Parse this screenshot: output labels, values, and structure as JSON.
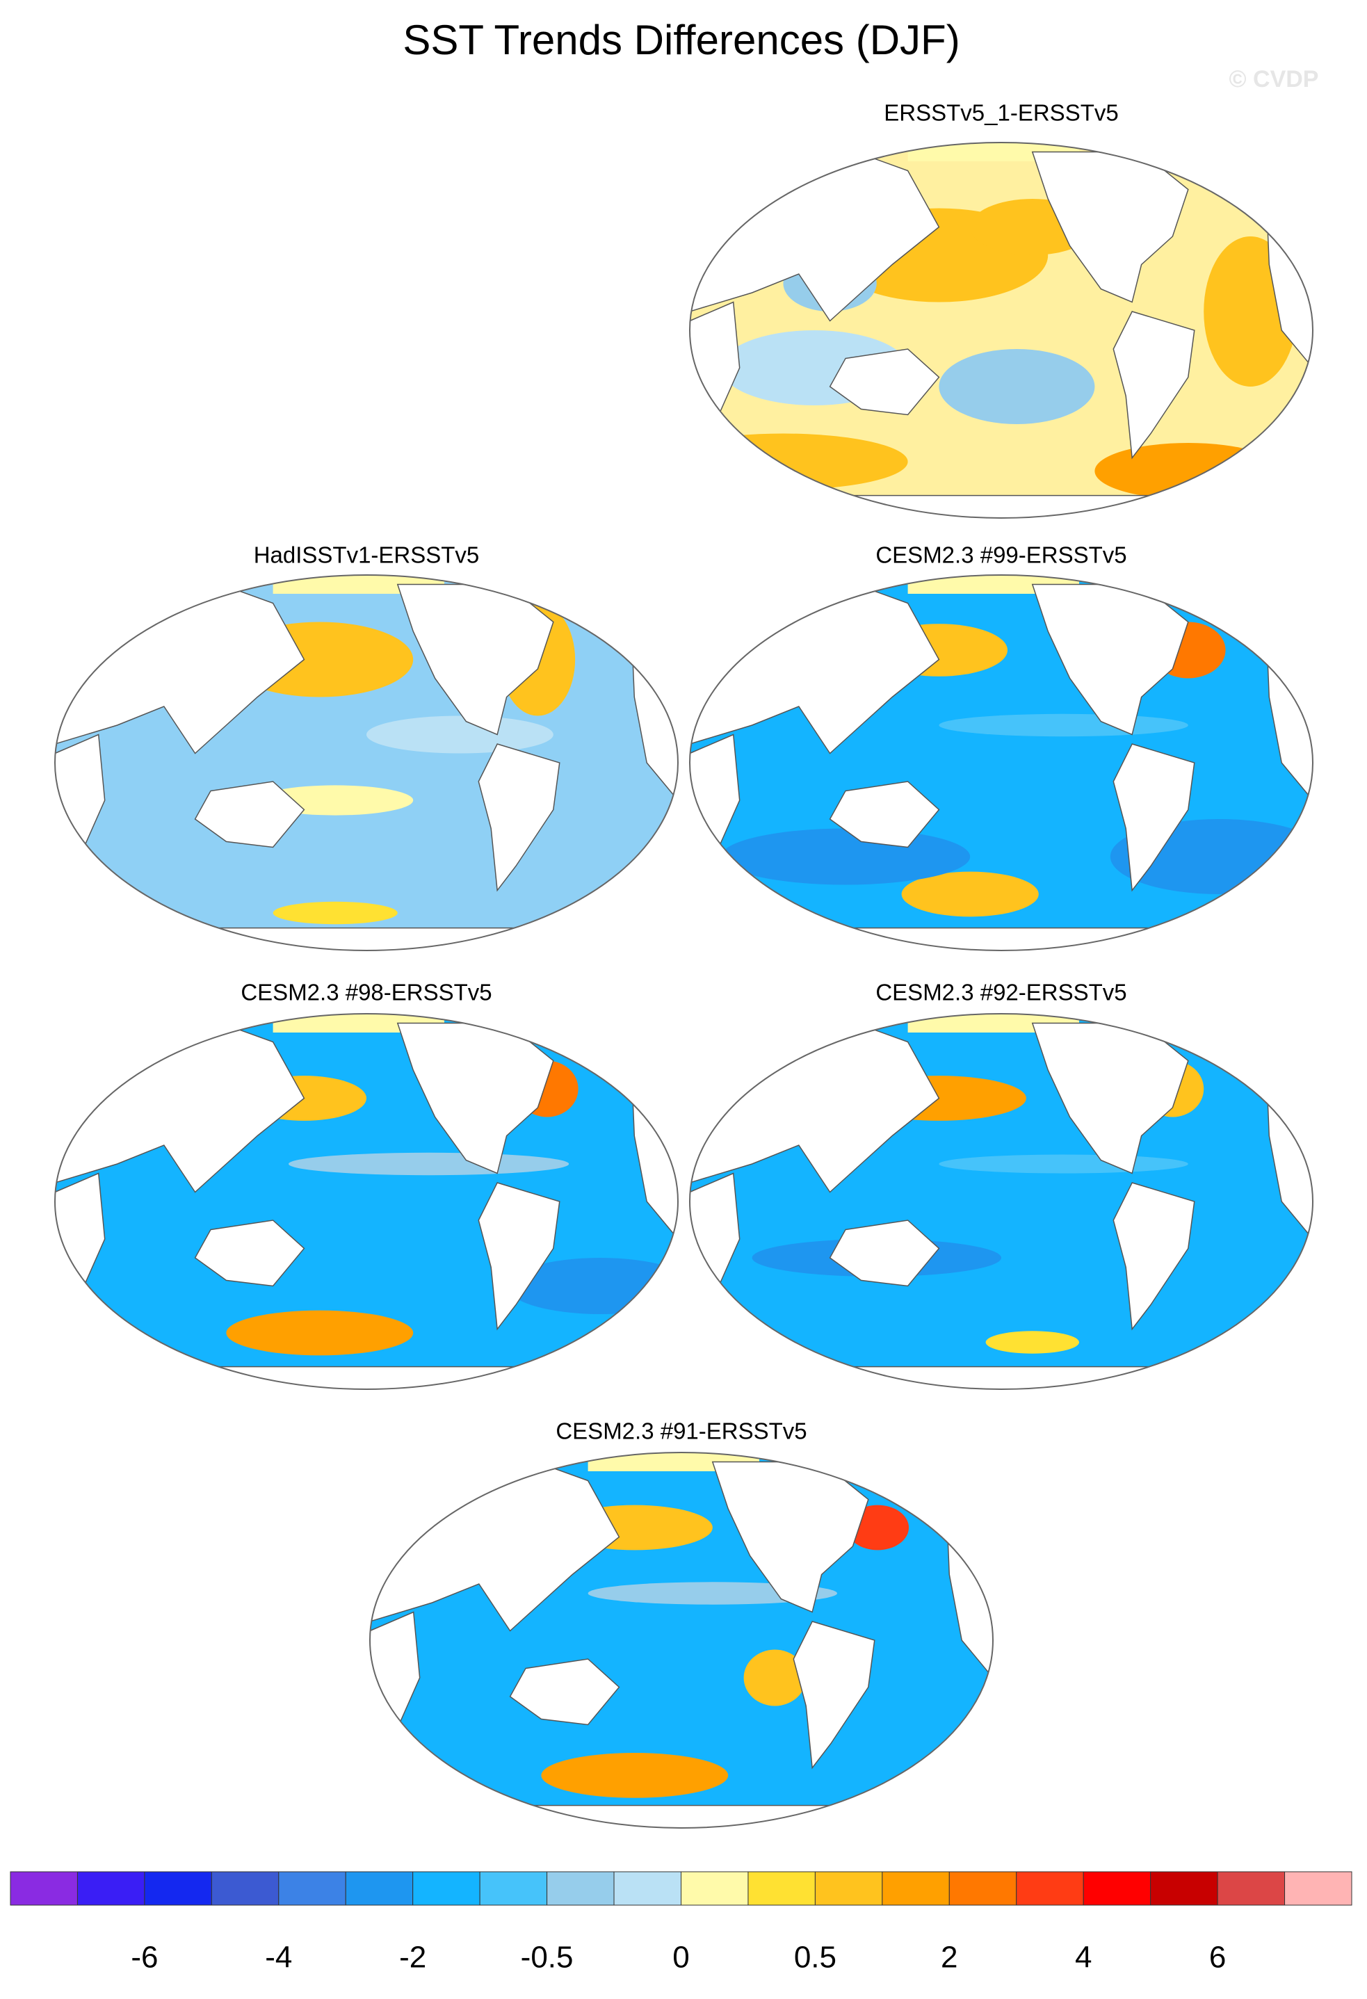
{
  "title": "SST Trends Differences (DJF)",
  "watermark": "© CVDP",
  "panels": [
    {
      "title": "ERSSTv5_1-ERSSTv5"
    },
    {
      "title": "HadISSTv1-ERSSTv5"
    },
    {
      "title": "CESM2.3 #99-ERSSTv5"
    },
    {
      "title": "CESM2.3 #98-ERSSTv5"
    },
    {
      "title": "CESM2.3 #92-ERSSTv5"
    },
    {
      "title": "CESM2.3 #91-ERSSTv5"
    }
  ],
  "colorbar": {
    "colors": [
      "#8a2be2",
      "#3a1ef5",
      "#1428f0",
      "#3c5ad2",
      "#3c82e6",
      "#1e96f0",
      "#14b4ff",
      "#46c3fa",
      "#96cdeb",
      "#bae1f5",
      "#fffaaa",
      "#ffe132",
      "#ffc31e",
      "#ffa000",
      "#ff7800",
      "#ff3c14",
      "#ff0000",
      "#c80000",
      "#dc4646",
      "#ffb4b4"
    ],
    "labels": [
      "-6",
      "-4",
      "-2",
      "-0.5",
      "0",
      "0.5",
      "2",
      "4",
      "6"
    ]
  }
}
